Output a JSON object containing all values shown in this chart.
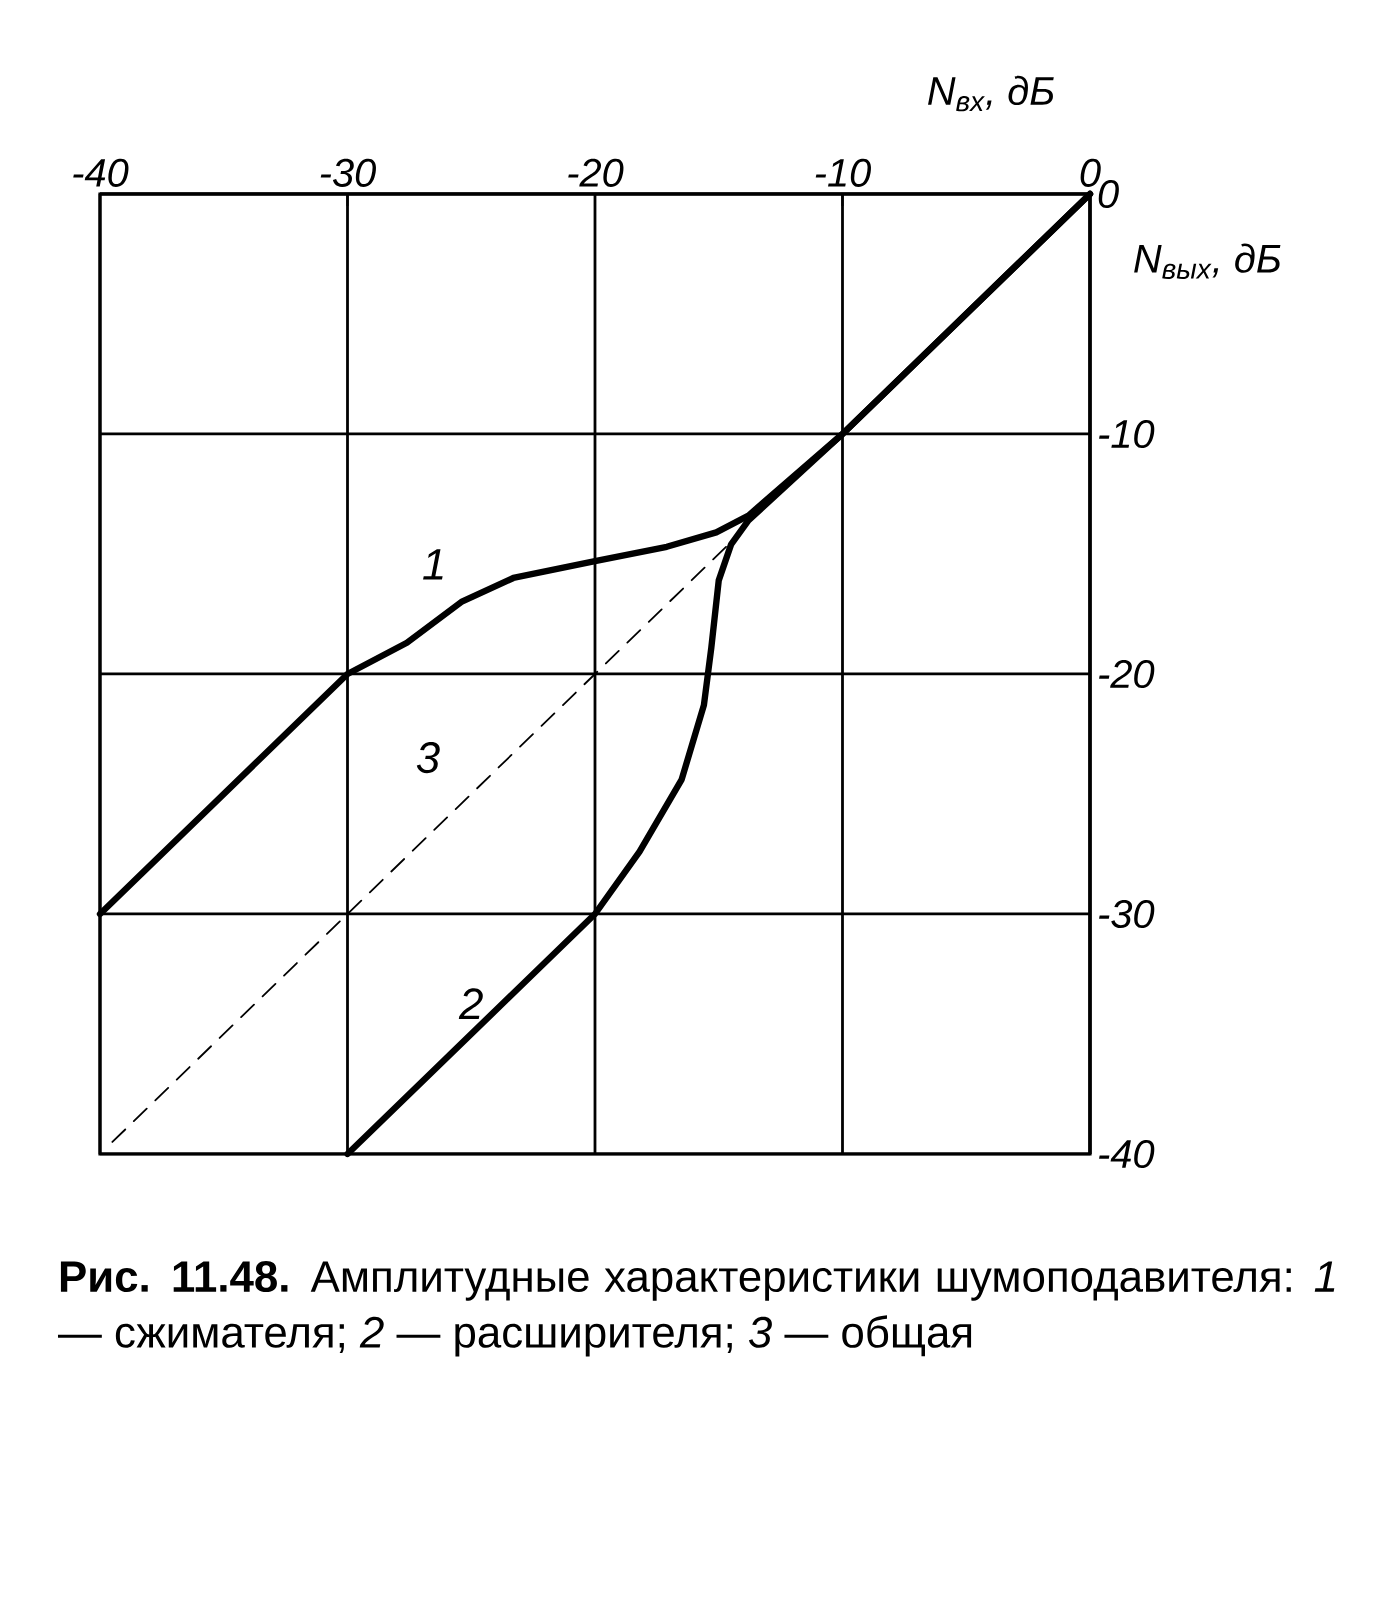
{
  "chart_data": {
    "type": "line",
    "title": "**Рис. 11.48.** Амплитудные характеристики шумоподавителя: *1* — сжимателя; *2* — расширителя; *3* — общая",
    "xlabel": "N$_{вх}$, дБ",
    "ylabel": "N$_{вых}$, дБ",
    "xlim": [
      -40,
      0
    ],
    "ylim": [
      -40,
      0
    ],
    "xticks": [
      -40,
      -30,
      -20,
      -10,
      0
    ],
    "yticks": [
      -40,
      -30,
      -20,
      -10,
      0
    ],
    "grid": true,
    "series": [
      {
        "name": "1",
        "color": "#000000",
        "line_style": "solid",
        "x": [
          -40,
          -30,
          -27.6,
          -25.4,
          -23.3,
          -20,
          -17.1,
          -15.1,
          -13.8,
          -10,
          0
        ],
        "values": [
          -30,
          -20,
          -18.7,
          -17.0,
          -16.0,
          -15.3,
          -14.7,
          -14.1,
          -13.4,
          -10,
          0
        ]
      },
      {
        "name": "2",
        "color": "#000000",
        "line_style": "solid",
        "x": [
          -30,
          -20,
          -18.2,
          -16.5,
          -15.6,
          -15.3,
          -15.0,
          -14.5,
          -13.8,
          -10,
          0
        ],
        "values": [
          -40,
          -30,
          -27.4,
          -24.4,
          -21.3,
          -18.9,
          -16.1,
          -14.6,
          -13.6,
          -10,
          0
        ]
      },
      {
        "name": "3",
        "color": "#000000",
        "line_style": "dashed",
        "x": [
          -39.5,
          -14
        ],
        "values": [
          -39.5,
          -14
        ]
      }
    ]
  }
}
